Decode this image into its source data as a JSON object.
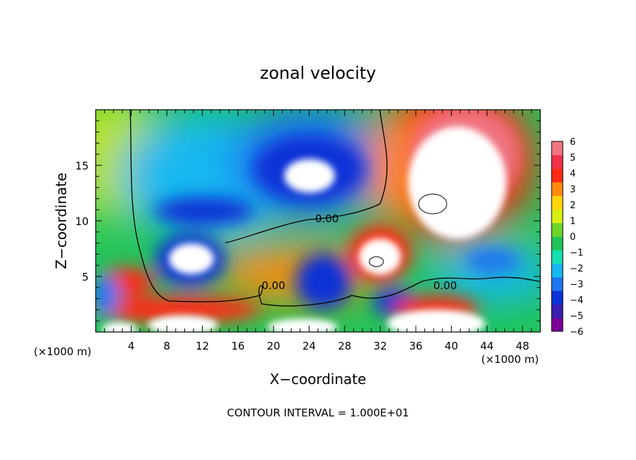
{
  "chart_data": {
    "type": "heatmap",
    "title": "zonal velocity",
    "xlabel": "X−coordinate",
    "ylabel": "Z−coordinate",
    "x_unit": "(×1000 m)",
    "z_unit": "(×1000 m)",
    "footer": "CONTOUR INTERVAL = 1.000E+01",
    "xlim": [
      0,
      50
    ],
    "ylim": [
      0,
      20
    ],
    "x_ticks": [
      "4",
      "8",
      "12",
      "16",
      "20",
      "24",
      "28",
      "32",
      "36",
      "40",
      "44",
      "48"
    ],
    "y_ticks": [
      "5",
      "10",
      "15"
    ],
    "colorbar": {
      "vmin": -6,
      "vmax": 6,
      "labels": [
        "6",
        "5",
        "4",
        "3",
        "2",
        "1",
        "0",
        "−1",
        "−2",
        "−3",
        "−4",
        "−5",
        "−6"
      ],
      "colors": [
        "#7a0096",
        "#3a1fb0",
        "#0b32d6",
        "#1f74f0",
        "#16b8f0",
        "#14e0b0",
        "#22c45a",
        "#6fd52a",
        "#d8ee14",
        "#ffd60a",
        "#ff8a0a",
        "#ff2a16",
        "#f2324a",
        "#f07482"
      ]
    },
    "contour_labels": [
      "0.00",
      "0.00",
      "0.00"
    ],
    "notes_values": {
      "features": [
        {
          "x": 24.5,
          "z": 14.5,
          "u": -7,
          "note": "strong easterly core (white, below -6)"
        },
        {
          "x": 10.5,
          "z": 6.8,
          "u": -7
        },
        {
          "x": 37.5,
          "z": 13.5,
          "u": 8,
          "note": "strong westerly core (white, above 6)"
        },
        {
          "x": 31.5,
          "z": 6.5,
          "u": 8
        },
        {
          "x": 40,
          "z": 1.5,
          "u": 8
        }
      ]
    }
  }
}
